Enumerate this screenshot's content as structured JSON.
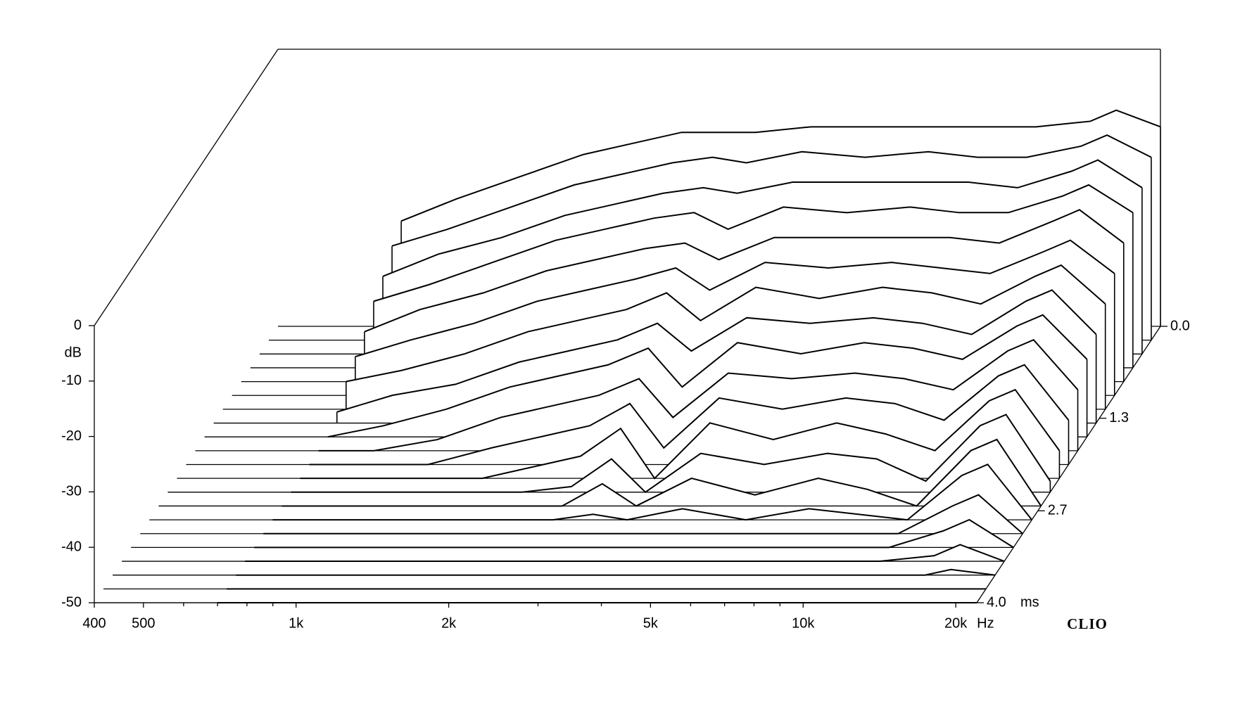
{
  "chart_data": {
    "type": "waterfall",
    "x_unit": "Hz",
    "y_label": "dB",
    "z_unit": "ms",
    "brand": "CLIO",
    "xlog": true,
    "xlim": [
      400,
      22000
    ],
    "xticks": [
      400,
      500,
      {
        "value": 1000,
        "label": "1k"
      },
      {
        "value": 2000,
        "label": "2k"
      },
      {
        "value": 5000,
        "label": "5k"
      },
      {
        "value": 10000,
        "label": "10k"
      },
      {
        "value": 20000,
        "label": "20k"
      }
    ],
    "xminorticks": [
      600,
      700,
      800,
      900,
      3000,
      4000,
      6000,
      7000,
      8000,
      9000
    ],
    "ylim": [
      -50,
      0
    ],
    "yticks": [
      0,
      -10,
      -20,
      -30,
      -40,
      -50
    ],
    "zlim": [
      0,
      4
    ],
    "zticks": [
      {
        "value": 0,
        "label": "0.0"
      },
      {
        "value": 1.33,
        "label": "1.3"
      },
      {
        "value": 2.67,
        "label": "2.7"
      },
      {
        "value": 4,
        "label": "4.0"
      }
    ],
    "color": "#000000",
    "x": [
      700,
      900,
      1200,
      1600,
      2000,
      2500,
      3000,
      3500,
      4500,
      6000,
      8000,
      10000,
      12500,
      16000,
      18000,
      22000
    ],
    "z": [
      0,
      0.2,
      0.4,
      0.6,
      0.8,
      1.0,
      1.2,
      1.4,
      1.6,
      1.8,
      2.0,
      2.2,
      2.4,
      2.6,
      2.8,
      3.0,
      3.2,
      3.4,
      3.6,
      3.8,
      4.0
    ],
    "series": [
      {
        "values": [
          -31,
          -27,
          -23,
          -19,
          -17,
          -15,
          -15,
          -15,
          -14,
          -14,
          -14,
          -14,
          -14,
          -13,
          -11,
          -14
        ]
      },
      {
        "values": [
          -33,
          -30,
          -26,
          -22,
          -20,
          -18,
          -17,
          -18,
          -16,
          -17,
          -16,
          -17,
          -17,
          -15,
          -13,
          -17
        ]
      },
      {
        "values": [
          -36,
          -32,
          -29,
          -25,
          -23,
          -21,
          -20,
          -21,
          -19,
          -19,
          -19,
          -19,
          -20,
          -17,
          -15,
          -20
        ]
      },
      {
        "values": [
          -38,
          -35,
          -31,
          -27,
          -25,
          -23,
          -22,
          -25,
          -21,
          -22,
          -21,
          -22,
          -22,
          -19,
          -17,
          -22
        ]
      },
      {
        "values": [
          -41,
          -37,
          -34,
          -30,
          -28,
          -26,
          -25,
          -28,
          -24,
          -24,
          -24,
          -24,
          -25,
          -21,
          -19,
          -25
        ]
      },
      {
        "values": [
          -43,
          -40,
          -37,
          -33,
          -31,
          -29,
          -27,
          -31,
          -26,
          -27,
          -26,
          -27,
          -28,
          -24,
          -22,
          -28
        ]
      },
      {
        "values": [
          -45,
          -43,
          -40,
          -36,
          -34,
          -32,
          -29,
          -34,
          -28,
          -30,
          -28,
          -29,
          -31,
          -26,
          -24,
          -31
        ]
      },
      {
        "values": [
          -48,
          -45,
          -43,
          -39,
          -37,
          -35,
          -32,
          -37,
          -31,
          -32,
          -31,
          -32,
          -34,
          -28,
          -26,
          -34
        ]
      },
      {
        "values": [
          -50,
          -48,
          -45,
          -41,
          -39,
          -37,
          -34,
          -41,
          -33,
          -35,
          -33,
          -34,
          -36,
          -30,
          -28,
          -36
        ]
      },
      {
        "values": [
          -50,
          -50,
          -48,
          -44,
          -42,
          -40,
          -37,
          -44,
          -36,
          -37,
          -36,
          -37,
          -39,
          -32,
          -30,
          -39
        ]
      },
      {
        "values": [
          -50,
          -50,
          -50,
          -47,
          -45,
          -43,
          -39,
          -47,
          -38,
          -40,
          -38,
          -39,
          -42,
          -34,
          -32,
          -42
        ]
      },
      {
        "values": [
          -50,
          -50,
          -50,
          -50,
          -48,
          -46,
          -41,
          -50,
          -40,
          -43,
          -40,
          -42,
          -45,
          -36,
          -34,
          -45
        ]
      },
      {
        "values": [
          -50,
          -50,
          -50,
          -50,
          -50,
          -49,
          -44,
          -50,
          -43,
          -45,
          -43,
          -44,
          -48,
          -38,
          -36,
          -48
        ]
      },
      {
        "values": [
          -50,
          -50,
          -50,
          -50,
          -50,
          -50,
          -46,
          -50,
          -45,
          -48,
          -45,
          -47,
          -50,
          -40,
          -38,
          -50
        ]
      },
      {
        "values": [
          -50,
          -50,
          -50,
          -50,
          -50,
          -50,
          -49,
          -50,
          -48,
          -50,
          -48,
          -49,
          -50,
          -42,
          -40,
          -50
        ]
      },
      {
        "values": [
          -50,
          -50,
          -50,
          -50,
          -50,
          -50,
          -50,
          -50,
          -50,
          -50,
          -50,
          -50,
          -50,
          -45,
          -43,
          -50
        ]
      },
      {
        "values": [
          -50,
          -50,
          -50,
          -50,
          -50,
          -50,
          -50,
          -50,
          -50,
          -50,
          -50,
          -50,
          -50,
          -47,
          -45,
          -50
        ]
      },
      {
        "values": [
          -50,
          -50,
          -50,
          -50,
          -50,
          -50,
          -50,
          -50,
          -50,
          -50,
          -50,
          -50,
          -50,
          -49,
          -47,
          -50
        ]
      },
      {
        "values": [
          -50,
          -50,
          -50,
          -50,
          -50,
          -50,
          -50,
          -50,
          -50,
          -50,
          -50,
          -50,
          -50,
          -50,
          -49,
          -50
        ]
      },
      {
        "values": [
          -50,
          -50,
          -50,
          -50,
          -50,
          -50,
          -50,
          -50,
          -50,
          -50,
          -50,
          -50,
          -50,
          -50,
          -50,
          -50
        ]
      },
      {
        "values": [
          -50,
          -50,
          -50,
          -50,
          -50,
          -50,
          -50,
          -50,
          -50,
          -50,
          -50,
          -50,
          -50,
          -50,
          -50,
          -50
        ]
      }
    ]
  }
}
